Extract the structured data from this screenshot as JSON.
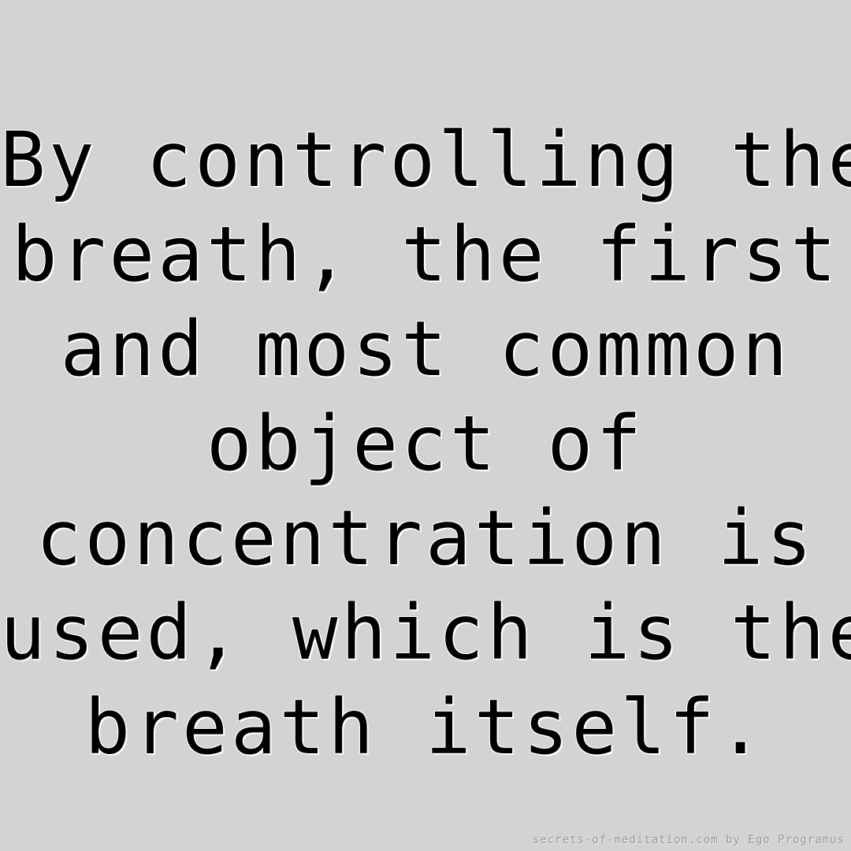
{
  "quote": {
    "lines": [
      "By controlling the",
      "breath, the first",
      "and most common",
      "object of",
      "concentration is",
      "used, which is the",
      "breath itself."
    ]
  },
  "credit": "secrets-of-meditation.com by Ego Programus",
  "colors": {
    "background": "#d3d3d3",
    "text": "#000000",
    "text_outline": "#ffffff",
    "credit": "#9a9a9a"
  }
}
